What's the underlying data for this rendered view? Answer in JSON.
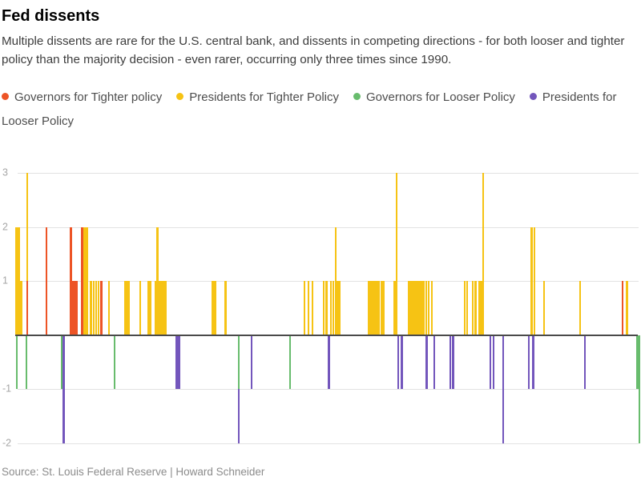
{
  "header": {
    "title": "Fed dissents",
    "subtitle": "Multiple dissents are rare for the U.S. central bank, and dissents in competing directions - for both looser and tighter policy than the majority decision - even rarer, occurring only three times since 1990."
  },
  "source": "Source: St. Louis Federal Reserve | Howard Schneider",
  "colors": {
    "background": "#FFFFFF",
    "governors_tighter": "#ED5426",
    "presidents_tighter": "#F6C314",
    "governors_looser": "#68BC6D",
    "presidents_looser": "#7356BC",
    "gridline": "#E2E2E2",
    "zero_axis": "#4A4A4A",
    "axis_label": "#A6A6A6",
    "source_text": "#8C8C8C"
  },
  "chart_data": {
    "type": "bar",
    "title": "Fed dissents",
    "xlabel": "",
    "ylabel": "",
    "ylim": [
      -2,
      3
    ],
    "y_ticks": [
      3,
      2,
      1,
      -1,
      -2
    ],
    "grid": "horizontal gridlines on, dark zero baseline, no x-axis tick labels shown",
    "legend_position": "top",
    "x_unit": "horizontal pixel position across 800px-wide chart (time axis, unlabeled)",
    "value_unit": "number of dissents per meeting; positive = for tighter policy, negative = for looser policy",
    "series": [
      {
        "key": "gov_tight",
        "name": "Governors for Tighter policy",
        "color": "#ED5426"
      },
      {
        "key": "pres_tight",
        "name": "Presidents for Tighter Policy",
        "color": "#F6C314"
      },
      {
        "key": "gov_loose",
        "name": "Governors for Looser Policy",
        "color": "#68BC6D"
      },
      {
        "key": "pres_loose",
        "name": "Presidents for Looser Policy",
        "color": "#7356BC"
      }
    ],
    "bars": [
      [
        20.5,
        "pres_tight",
        0,
        2
      ],
      [
        21,
        "gov_loose",
        0,
        -1
      ],
      [
        23.5,
        "pres_tight",
        0,
        2
      ],
      [
        26.5,
        "pres_tight",
        0,
        1
      ],
      [
        33,
        "gov_loose",
        0,
        -1
      ],
      [
        34,
        "gov_tight",
        0,
        1
      ],
      [
        34,
        "pres_tight",
        1,
        3
      ],
      [
        58,
        "gov_tight",
        0,
        2
      ],
      [
        77,
        "gov_loose",
        0,
        -1
      ],
      [
        79.5,
        "pres_loose",
        0,
        -2
      ],
      [
        88.5,
        "gov_tight",
        0,
        2
      ],
      [
        91.5,
        "gov_tight",
        0,
        1
      ],
      [
        93.5,
        "gov_tight",
        0,
        1
      ],
      [
        96,
        "gov_tight",
        0,
        1
      ],
      [
        102.5,
        "gov_tight",
        0,
        2
      ],
      [
        105.5,
        "pres_tight",
        0,
        2
      ],
      [
        108.5,
        "pres_tight",
        0,
        2
      ],
      [
        113.5,
        "pres_tight",
        0,
        1
      ],
      [
        117,
        "pres_tight",
        0,
        1
      ],
      [
        120,
        "pres_tight",
        0,
        1
      ],
      [
        123,
        "pres_tight",
        0,
        1
      ],
      [
        126.5,
        "gov_tight",
        0,
        1
      ],
      [
        136,
        "pres_tight",
        0,
        1
      ],
      [
        143,
        "gov_loose",
        0,
        -1
      ],
      [
        156,
        "pres_tight",
        0,
        1
      ],
      [
        158.5,
        "pres_tight",
        0,
        1
      ],
      [
        161,
        "pres_tight",
        0,
        1
      ],
      [
        175,
        "pres_tight",
        0,
        1
      ],
      [
        185.5,
        "pres_tight",
        0,
        1
      ],
      [
        188,
        "pres_tight",
        0,
        1
      ],
      [
        194,
        "pres_tight",
        0,
        1
      ],
      [
        196.5,
        "pres_tight",
        0,
        2
      ],
      [
        199.5,
        "pres_tight",
        0,
        1
      ],
      [
        202,
        "pres_tight",
        0,
        1
      ],
      [
        204.5,
        "pres_tight",
        0,
        1
      ],
      [
        207,
        "pres_tight",
        0,
        1
      ],
      [
        220.5,
        "pres_loose",
        0,
        -1
      ],
      [
        223.5,
        "pres_loose",
        0,
        -1
      ],
      [
        265.5,
        "pres_tight",
        0,
        1
      ],
      [
        268.5,
        "pres_tight",
        0,
        1
      ],
      [
        281.5,
        "pres_tight",
        0,
        1
      ],
      [
        298,
        "gov_loose",
        0,
        -1
      ],
      [
        298,
        "pres_loose",
        -1,
        -2
      ],
      [
        314,
        "pres_loose",
        0,
        -1
      ],
      [
        362,
        "gov_loose",
        0,
        -1
      ],
      [
        380,
        "pres_tight",
        0,
        1
      ],
      [
        385,
        "pres_tight",
        0,
        1
      ],
      [
        390,
        "pres_tight",
        0,
        1
      ],
      [
        404,
        "pres_tight",
        0,
        1
      ],
      [
        407.5,
        "pres_tight",
        0,
        1
      ],
      [
        410.5,
        "pres_loose",
        0,
        -1
      ],
      [
        413,
        "pres_tight",
        0,
        1
      ],
      [
        416,
        "pres_tight",
        0,
        1
      ],
      [
        419,
        "pres_tight",
        0,
        2
      ],
      [
        421.5,
        "pres_tight",
        0,
        1
      ],
      [
        424,
        "pres_tight",
        0,
        1
      ],
      [
        460.5,
        "pres_tight",
        0,
        1
      ],
      [
        463,
        "pres_tight",
        0,
        1
      ],
      [
        465.5,
        "pres_tight",
        0,
        1
      ],
      [
        468,
        "pres_tight",
        0,
        1
      ],
      [
        470.5,
        "pres_tight",
        0,
        1
      ],
      [
        473,
        "pres_tight",
        0,
        1
      ],
      [
        476,
        "pres_tight",
        0,
        1
      ],
      [
        478.5,
        "pres_tight",
        0,
        1
      ],
      [
        492.5,
        "pres_tight",
        0,
        1
      ],
      [
        495,
        "pres_tight",
        0,
        3
      ],
      [
        497,
        "pres_loose",
        0,
        -1
      ],
      [
        501.5,
        "pres_loose",
        0,
        -1
      ],
      [
        510.5,
        "pres_tight",
        0,
        1
      ],
      [
        513.5,
        "pres_tight",
        0,
        1
      ],
      [
        516.5,
        "pres_tight",
        0,
        1
      ],
      [
        519,
        "pres_tight",
        0,
        1
      ],
      [
        521.5,
        "pres_tight",
        0,
        1
      ],
      [
        524,
        "pres_tight",
        0,
        1
      ],
      [
        526.5,
        "pres_tight",
        0,
        1
      ],
      [
        529,
        "pres_tight",
        0,
        1
      ],
      [
        532,
        "pres_tight",
        0,
        1
      ],
      [
        532.5,
        "pres_loose",
        0,
        -1
      ],
      [
        535,
        "pres_tight",
        0,
        1
      ],
      [
        539,
        "pres_tight",
        0,
        1
      ],
      [
        542,
        "pres_loose",
        0,
        -1
      ],
      [
        562,
        "pres_loose",
        0,
        -1
      ],
      [
        565.5,
        "pres_loose",
        0,
        -1
      ],
      [
        580,
        "pres_tight",
        0,
        1
      ],
      [
        583,
        "pres_tight",
        0,
        1
      ],
      [
        590,
        "pres_tight",
        0,
        1
      ],
      [
        593.5,
        "pres_tight",
        0,
        1
      ],
      [
        598,
        "pres_tight",
        0,
        1
      ],
      [
        600.5,
        "pres_tight",
        0,
        1
      ],
      [
        603,
        "pres_tight",
        0,
        3
      ],
      [
        612,
        "pres_loose",
        0,
        -1
      ],
      [
        616,
        "pres_loose",
        0,
        -1
      ],
      [
        628,
        "pres_loose",
        0,
        -2
      ],
      [
        660,
        "pres_loose",
        0,
        -1
      ],
      [
        663.5,
        "pres_tight",
        0,
        2
      ],
      [
        665.5,
        "pres_loose",
        0,
        -1
      ],
      [
        667,
        "pres_tight",
        0,
        2
      ],
      [
        679,
        "pres_tight",
        0,
        1
      ],
      [
        724,
        "pres_tight",
        0,
        1
      ],
      [
        730,
        "pres_loose",
        0,
        -1
      ],
      [
        777,
        "gov_tight",
        0,
        1
      ],
      [
        782.5,
        "pres_tight",
        0,
        1
      ],
      [
        795.5,
        "gov_loose",
        0,
        -1
      ],
      [
        798,
        "gov_loose",
        0,
        -2
      ]
    ]
  }
}
